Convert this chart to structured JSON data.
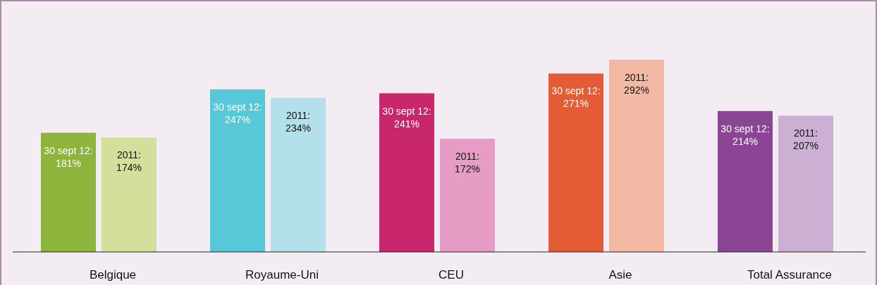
{
  "chart_data": {
    "type": "bar",
    "categories": [
      "Belgique",
      "Royaume-Uni",
      "CEU",
      "Asie",
      "Total Assurance"
    ],
    "series": [
      {
        "colors": [
          "#8db53c",
          "#56c8d8",
          "#c8276e",
          "#e45c35",
          "#8a4595"
        ],
        "values": [
          181,
          247,
          241,
          271,
          214
        ],
        "value_labels": [
          "30 sept 12: 181%",
          "30 sept 12: 247%",
          "30 sept 12: 241%",
          "30 sept 12: 271%",
          "30 sept 12: 214%"
        ]
      },
      {
        "colors": [
          "#d3e09c",
          "#b3e0ea",
          "#e69cc4",
          "#f4b9a4",
          "#ccb0d4"
        ],
        "values": [
          174,
          234,
          172,
          292,
          207
        ],
        "value_labels": [
          "2011: 174%",
          "2011: 234%",
          "2011: 172%",
          "2011: 292%",
          "2011: 207%"
        ]
      }
    ]
  }
}
